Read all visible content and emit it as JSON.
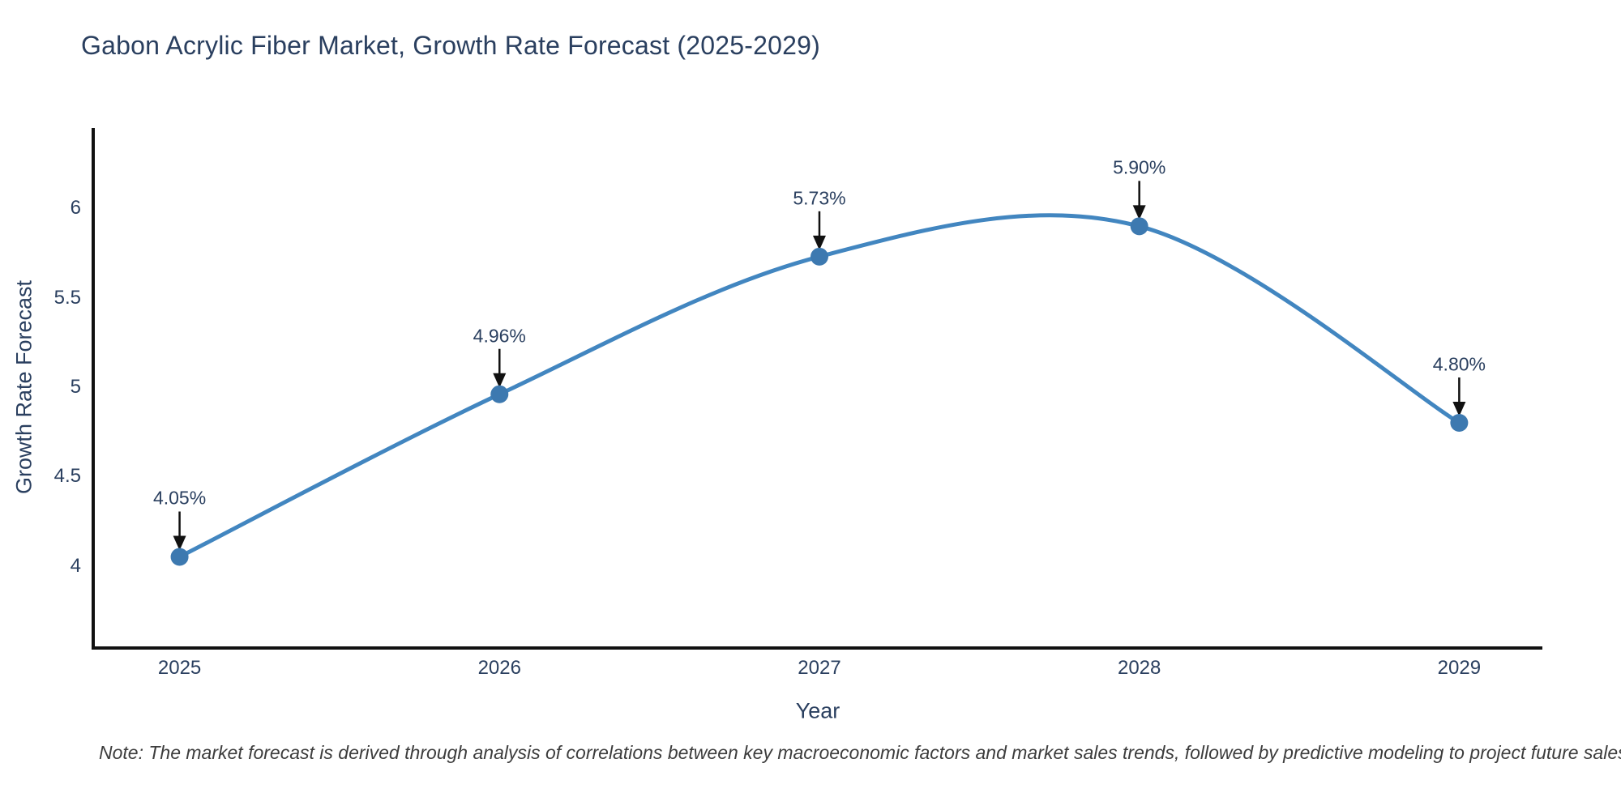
{
  "header": {
    "title": "Gabon Acrylic Fiber Market, Growth Rate Forecast (2025-2029)"
  },
  "chart_data": {
    "type": "line",
    "title": "Gabon Acrylic Fiber Market, Growth Rate Forecast (2025-2029)",
    "x": [
      2025,
      2026,
      2027,
      2028,
      2029
    ],
    "values": [
      4.05,
      4.96,
      5.73,
      5.9,
      4.8
    ],
    "point_labels": [
      "4.05%",
      "4.96%",
      "5.73%",
      "5.90%",
      "4.80%"
    ],
    "x_tick_labels": [
      "2025",
      "2026",
      "2027",
      "2028",
      "2029"
    ],
    "y_ticks": [
      4,
      4.5,
      5,
      5.5,
      6
    ],
    "y_tick_labels": [
      "4",
      "4.5",
      "5",
      "5.5",
      "6"
    ],
    "xlabel": "Year",
    "ylabel": "Growth Rate Forecast",
    "xlim": [
      2024.73,
      2029.26
    ],
    "ylim": [
      3.54,
      6.45
    ],
    "line_shape": "spline",
    "grid": false,
    "legend": "none",
    "line_color": "#4286c0",
    "marker_color": "#3d79b0",
    "axis_color": "#111111",
    "arrow_color": "#111111",
    "title_color": "#2a3f5f",
    "tick_color": "#2a3f5f"
  },
  "footer": {
    "note": "Note: The market forecast is derived through analysis of correlations between key macroeconomic factors and market sales trends, followed by predictive modeling to project future sales."
  }
}
